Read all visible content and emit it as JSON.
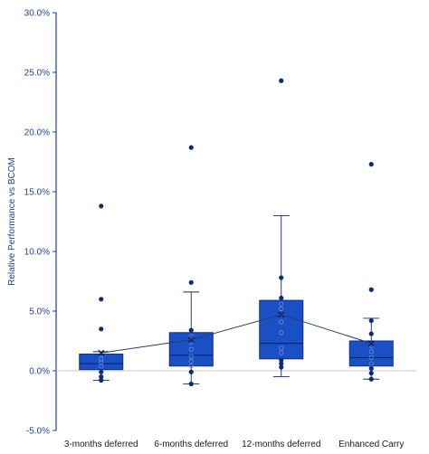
{
  "chart_data": {
    "type": "box",
    "ylabel": "Relative Performance vs BCOM",
    "ylim": [
      -0.05,
      0.3
    ],
    "y_ticks": [
      -0.05,
      0.0,
      0.05,
      0.1,
      0.15,
      0.2,
      0.25,
      0.3
    ],
    "y_tick_labels": [
      "-5.0%",
      "0.0%",
      "5.0%",
      "10.0%",
      "15.0%",
      "20.0%",
      "25.0%",
      "30.0%"
    ],
    "grid": false,
    "legend": "none",
    "colors": {
      "box_fill": "#1b4fc4",
      "box_edge": "#0f2f86",
      "whisker": "#1a2a5c",
      "axis": "#1f3f9c",
      "point": "#0c2a7a",
      "mean_line": "#2b3a6b"
    },
    "categories": [
      "3-months deferred",
      "6-months deferred",
      "12-months deferred",
      "Enhanced Carry"
    ],
    "boxes": [
      {
        "category": "3-months deferred",
        "whisker_low": -0.008,
        "q1": 0.001,
        "median": 0.006,
        "q3": 0.014,
        "whisker_high": 0.016,
        "mean": 0.015,
        "points": [
          -0.008,
          -0.005,
          -0.001,
          0.004,
          0.007,
          0.01,
          0.013,
          0.035,
          0.06,
          0.138
        ]
      },
      {
        "category": "6-months deferred",
        "whisker_low": -0.011,
        "q1": 0.004,
        "median": 0.013,
        "q3": 0.032,
        "whisker_high": 0.066,
        "mean": 0.026,
        "points": [
          -0.011,
          -0.001,
          0.004,
          0.008,
          0.012,
          0.018,
          0.024,
          0.029,
          0.034,
          0.074,
          0.187
        ]
      },
      {
        "category": "12-months deferred",
        "whisker_low": -0.005,
        "q1": 0.01,
        "median": 0.023,
        "q3": 0.059,
        "whisker_high": 0.13,
        "mean": 0.047,
        "points": [
          0.003,
          0.006,
          0.009,
          0.015,
          0.019,
          0.032,
          0.041,
          0.052,
          0.056,
          0.061,
          0.078,
          0.243
        ]
      },
      {
        "category": "Enhanced Carry",
        "whisker_low": -0.007,
        "q1": 0.004,
        "median": 0.011,
        "q3": 0.025,
        "whisker_high": 0.044,
        "mean": 0.023,
        "points": [
          -0.007,
          -0.002,
          0.002,
          0.006,
          0.011,
          0.016,
          0.021,
          0.031,
          0.042,
          0.068,
          0.173
        ]
      }
    ]
  }
}
